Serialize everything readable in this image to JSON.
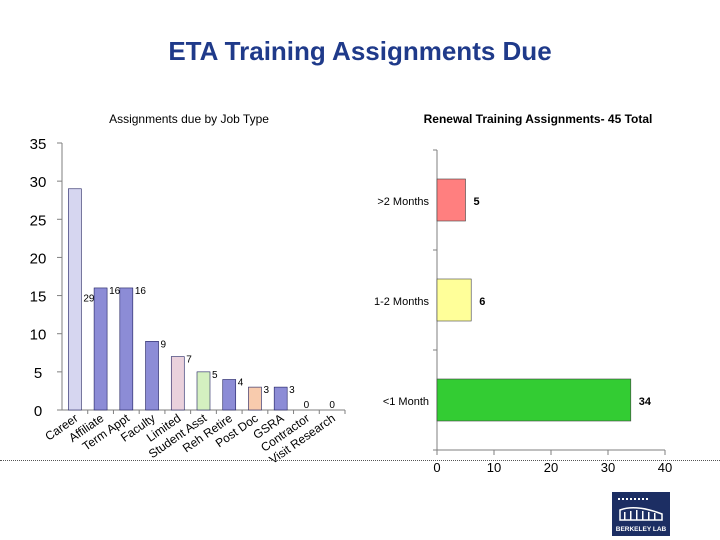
{
  "slide": {
    "title": "ETA Training Assignments Due"
  },
  "logo": {
    "text": "BERKELEY LAB"
  },
  "chart_data": [
    {
      "type": "bar",
      "title": "Assignments due by Job Type",
      "ylim": [
        0,
        35
      ],
      "yticks": [
        0,
        5,
        10,
        15,
        20,
        25,
        30,
        35
      ],
      "categories": [
        "Career",
        "Affiliate",
        "Term Appt",
        "Faculty",
        "Limited",
        "Student Asst",
        "Reh Retire",
        "Post Doc",
        "GSRA",
        "Contractor",
        "Visit Research"
      ],
      "values": [
        29,
        16,
        16,
        9,
        7,
        5,
        4,
        3,
        3,
        0,
        0
      ],
      "colors": [
        "#d6d6f0",
        "#8c8cd6",
        "#8c8cd6",
        "#8c8cd6",
        "#ead1dc",
        "#d4f0c0",
        "#8c8cd6",
        "#f8cbad",
        "#8c8cd6",
        "#8c8cd6",
        "#8c8cd6"
      ]
    },
    {
      "type": "bar",
      "orientation": "horizontal",
      "title": "Renewal Training Assignments- 45 Total",
      "xlim": [
        0,
        40
      ],
      "xticks": [
        0,
        10,
        20,
        30,
        40
      ],
      "categories": [
        ">2 Months",
        "1-2 Months",
        "<1 Month"
      ],
      "values": [
        5,
        6,
        34
      ],
      "colors": [
        "#ff7f7f",
        "#ffff99",
        "#33cc33"
      ]
    }
  ]
}
